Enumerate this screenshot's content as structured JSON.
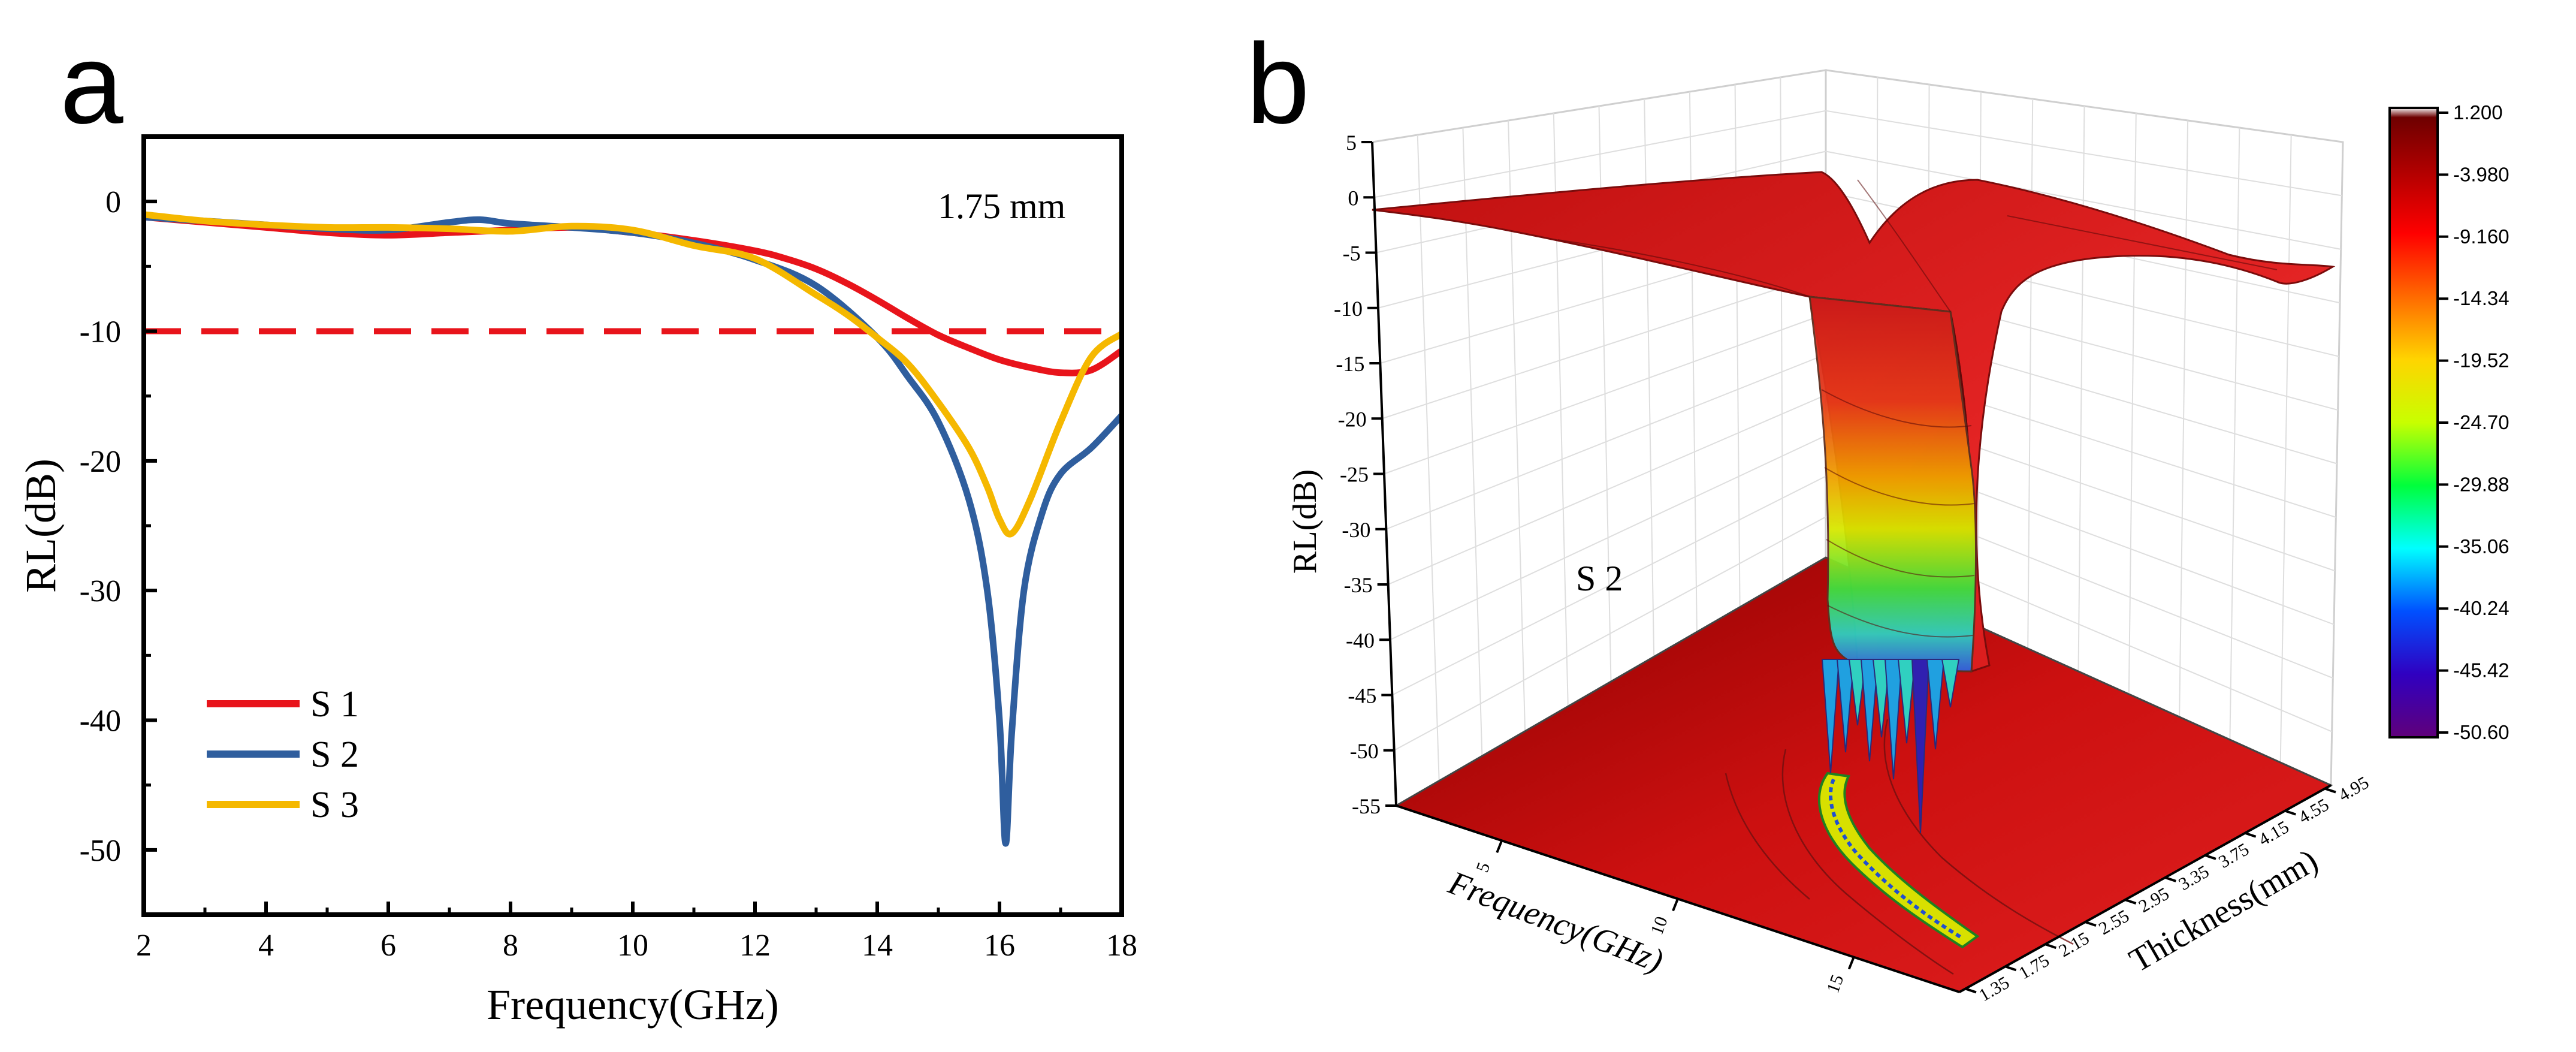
{
  "chart_data": [
    {
      "panel": "a",
      "type": "line",
      "xlabel": "Frequency(GHz)",
      "ylabel": "RL(dB)",
      "xlim": [
        2,
        18
      ],
      "ylim": [
        -55,
        5
      ],
      "xticks": [
        2,
        4,
        6,
        8,
        10,
        12,
        14,
        16,
        18
      ],
      "yticks": [
        0,
        -10,
        -20,
        -30,
        -40,
        -50
      ],
      "annotation": "1.75 mm",
      "reference_line": {
        "y": -10,
        "color": "#e8141b",
        "style": "dashed"
      },
      "legend_position": "bottom-left",
      "series": [
        {
          "name": "S 1",
          "color": "#e8141b",
          "x": [
            2,
            3,
            4,
            5,
            6,
            7,
            8,
            9,
            10,
            11,
            12,
            12.5,
            13,
            13.5,
            14,
            14.5,
            15,
            15.5,
            16,
            16.5,
            17,
            17.5,
            18
          ],
          "y": [
            -1.2,
            -1.6,
            -2.0,
            -2.4,
            -2.6,
            -2.4,
            -2.2,
            -2.0,
            -2.4,
            -3.0,
            -3.8,
            -4.4,
            -5.2,
            -6.3,
            -7.6,
            -9.0,
            -10.3,
            -11.3,
            -12.2,
            -12.8,
            -13.2,
            -13.0,
            -11.5
          ]
        },
        {
          "name": "S 2",
          "color": "#2f5e9e",
          "x": [
            2,
            3,
            4,
            5,
            6,
            7,
            7.5,
            8,
            9,
            10,
            11,
            12,
            13,
            14,
            14.5,
            15,
            15.5,
            15.8,
            16.0,
            16.1,
            16.2,
            16.4,
            16.7,
            17,
            17.5,
            18
          ],
          "y": [
            -1.2,
            -1.5,
            -1.8,
            -2.1,
            -2.2,
            -1.6,
            -1.4,
            -1.7,
            -2.0,
            -2.4,
            -3.2,
            -4.5,
            -6.5,
            -10.5,
            -13.5,
            -17.0,
            -23.0,
            -30.0,
            -40.0,
            -49.5,
            -41.0,
            -30.0,
            -24.0,
            -21.0,
            -19.0,
            -16.5
          ]
        },
        {
          "name": "S 3",
          "color": "#f5b800",
          "x": [
            2,
            3,
            4,
            5,
            6,
            7,
            8,
            9,
            10,
            11,
            12,
            13,
            13.5,
            14,
            14.5,
            15,
            15.5,
            15.8,
            16.0,
            16.2,
            16.5,
            17.0,
            17.5,
            18
          ],
          "y": [
            -1.0,
            -1.5,
            -1.8,
            -2.0,
            -2.0,
            -2.1,
            -2.3,
            -1.9,
            -2.2,
            -3.4,
            -4.4,
            -7.2,
            -8.7,
            -10.5,
            -12.5,
            -15.5,
            -19.0,
            -22.0,
            -24.5,
            -25.6,
            -23.0,
            -17.0,
            -12.0,
            -10.2
          ]
        }
      ]
    },
    {
      "panel": "b",
      "type": "surface3d",
      "label": "S 2",
      "zlabel": "RL(dB)",
      "xlabel": "Frequency(GHz)",
      "ylabel": "Thickness(mm)",
      "zticks": [
        5,
        0,
        -5,
        -10,
        -15,
        -20,
        -25,
        -30,
        -35,
        -40,
        -45,
        -50,
        -55
      ],
      "zlim": [
        -55,
        5
      ],
      "xticks": [
        5,
        10,
        15
      ],
      "xlim": [
        2,
        18
      ],
      "yticks": [
        "1.35",
        "1.75",
        "2.15",
        "2.55",
        "2.95",
        "3.35",
        "3.75",
        "4.15",
        "4.55",
        "4.95"
      ],
      "ylim": [
        1.35,
        4.95
      ],
      "colorbar": {
        "labels": [
          "1.200",
          "-3.980",
          "-9.160",
          "-14.34",
          "-19.52",
          "-24.70",
          "-29.88",
          "-35.06",
          "-40.24",
          "-45.42",
          "-50.60"
        ],
        "min": -50.6,
        "max": 1.2
      }
    }
  ]
}
